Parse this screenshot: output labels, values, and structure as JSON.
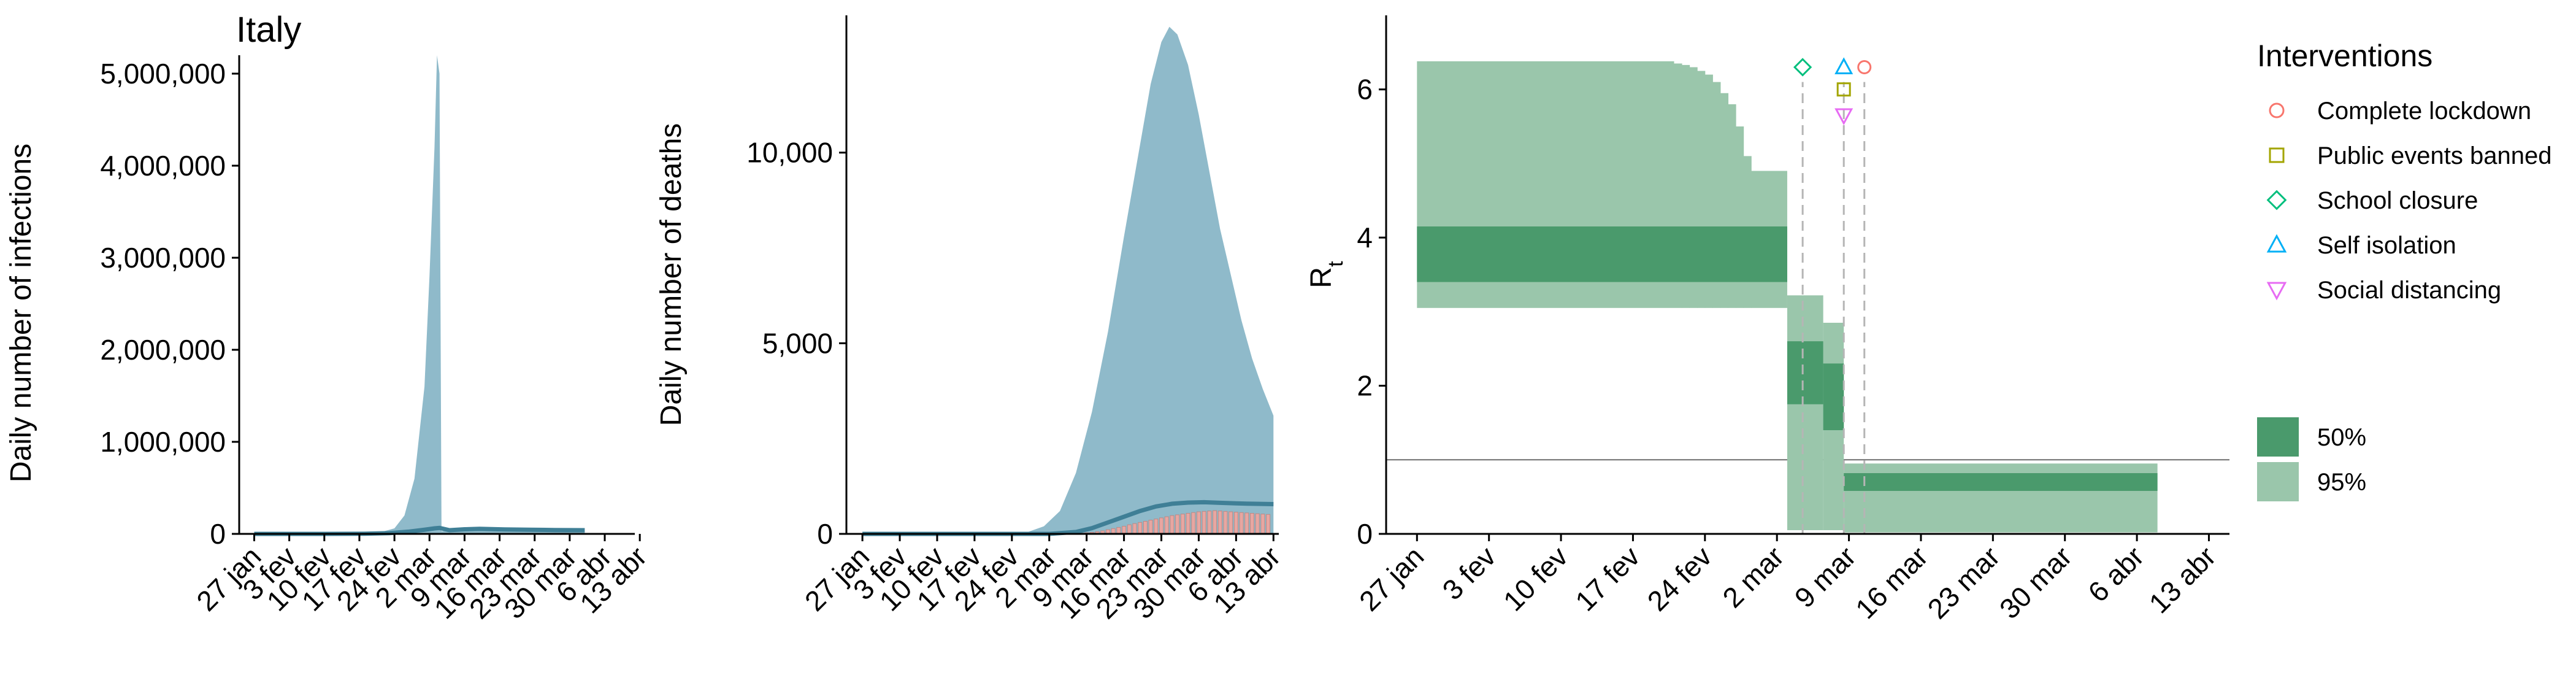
{
  "figure_title": "Italy",
  "colors": {
    "band_blue": "#8fbaca",
    "line_blue": "#3f7f96",
    "bar_red": "#e8a6a1",
    "rt_50": "#4a9a6c",
    "rt_95": "#9ac6ab",
    "lockdown": "#f8766d",
    "public_events": "#a3a500",
    "school": "#00bf7d",
    "self_isolation": "#00b0f6",
    "social_distancing": "#e76bf3"
  },
  "legend": {
    "interventions_title": "Interventions",
    "interventions": [
      {
        "label": "Complete lockdown",
        "shape": "circle",
        "color_key": "lockdown"
      },
      {
        "label": "Public events banned",
        "shape": "square",
        "color_key": "public_events"
      },
      {
        "label": "School closure",
        "shape": "diamond",
        "color_key": "school"
      },
      {
        "label": "Self isolation",
        "shape": "triangle-up",
        "color_key": "self_isolation"
      },
      {
        "label": "Social distancing",
        "shape": "triangle-down",
        "color_key": "social_distancing"
      }
    ],
    "ci": [
      {
        "label": "50%",
        "color_key": "rt_50"
      },
      {
        "label": "95%",
        "color_key": "rt_95"
      }
    ]
  },
  "chart_data": [
    {
      "id": "infections",
      "type": "area",
      "title": "Italy",
      "ylabel": "Daily number of infections",
      "xlim_day": [
        -3,
        76
      ],
      "ylim": [
        0,
        5200000
      ],
      "yticks": [
        0,
        1000000,
        2000000,
        3000000,
        4000000,
        5000000
      ],
      "ytick_labels": [
        "0",
        "1,000,000",
        "2,000,000",
        "3,000,000",
        "4,000,000",
        "5,000,000"
      ],
      "xticks_day": [
        0,
        7,
        14,
        21,
        28,
        35,
        42,
        49,
        56,
        63,
        70,
        77
      ],
      "xtick_labels": [
        "27 jan",
        "3 fev",
        "10 fev",
        "17 fev",
        "24 fev",
        "2 mar",
        "9 mar",
        "16 mar",
        "23 mar",
        "30 mar",
        "6 abr",
        "13 abr"
      ],
      "upper_band": [
        [
          0,
          0
        ],
        [
          14,
          0
        ],
        [
          21,
          2000
        ],
        [
          25,
          15000
        ],
        [
          28,
          60000
        ],
        [
          30,
          200000
        ],
        [
          32,
          600000
        ],
        [
          34,
          1600000
        ],
        [
          35,
          2800000
        ],
        [
          36,
          4200000
        ],
        [
          36.5,
          5200000
        ],
        [
          37,
          5000000
        ],
        [
          37.4,
          30000
        ],
        [
          40,
          40000
        ],
        [
          45,
          50000
        ],
        [
          50,
          45000
        ],
        [
          55,
          40000
        ],
        [
          60,
          38000
        ],
        [
          66,
          35000
        ],
        [
          66,
          0
        ]
      ],
      "median_line": [
        [
          0,
          0
        ],
        [
          14,
          0
        ],
        [
          22,
          2000
        ],
        [
          27,
          8000
        ],
        [
          31,
          25000
        ],
        [
          34,
          45000
        ],
        [
          36,
          60000
        ],
        [
          37,
          65000
        ],
        [
          39,
          40000
        ],
        [
          42,
          50000
        ],
        [
          45,
          55000
        ],
        [
          50,
          48000
        ],
        [
          55,
          45000
        ],
        [
          60,
          42000
        ],
        [
          66,
          40000
        ]
      ]
    },
    {
      "id": "deaths",
      "type": "area",
      "ylabel": "Daily number of deaths",
      "xlim_day": [
        -3,
        78
      ],
      "ylim": [
        0,
        13600
      ],
      "yticks": [
        0,
        5000,
        10000
      ],
      "ytick_labels": [
        "0",
        "5,000",
        "10,000"
      ],
      "xticks_day": [
        0,
        7,
        14,
        21,
        28,
        35,
        42,
        49,
        56,
        63,
        70,
        77
      ],
      "xtick_labels": [
        "27 jan",
        "3 fev",
        "10 fev",
        "17 fev",
        "24 fev",
        "2 mar",
        "9 mar",
        "16 mar",
        "23 mar",
        "30 mar",
        "6 abr",
        "13 abr"
      ],
      "upper_band": [
        [
          0,
          0
        ],
        [
          28,
          0
        ],
        [
          31,
          50
        ],
        [
          34,
          200
        ],
        [
          37,
          600
        ],
        [
          40,
          1600
        ],
        [
          43,
          3200
        ],
        [
          46,
          5300
        ],
        [
          49,
          7800
        ],
        [
          52,
          10200
        ],
        [
          54,
          11800
        ],
        [
          56,
          12900
        ],
        [
          57.5,
          13300
        ],
        [
          59,
          13100
        ],
        [
          61,
          12300
        ],
        [
          63,
          11000
        ],
        [
          65,
          9500
        ],
        [
          67,
          8000
        ],
        [
          69,
          6800
        ],
        [
          71,
          5600
        ],
        [
          73,
          4600
        ],
        [
          75,
          3800
        ],
        [
          77,
          3100
        ],
        [
          77,
          0
        ]
      ],
      "median_line": [
        [
          0,
          0
        ],
        [
          35,
          0
        ],
        [
          40,
          50
        ],
        [
          43,
          150
        ],
        [
          46,
          300
        ],
        [
          49,
          450
        ],
        [
          52,
          600
        ],
        [
          55,
          720
        ],
        [
          58,
          790
        ],
        [
          61,
          820
        ],
        [
          64,
          830
        ],
        [
          67,
          815
        ],
        [
          70,
          800
        ],
        [
          73,
          790
        ],
        [
          77,
          780
        ]
      ],
      "reported_deaths": [
        [
          40,
          10
        ],
        [
          41,
          20
        ],
        [
          42,
          30
        ],
        [
          43,
          40
        ],
        [
          44,
          60
        ],
        [
          45,
          80
        ],
        [
          46,
          110
        ],
        [
          47,
          140
        ],
        [
          48,
          170
        ],
        [
          49,
          200
        ],
        [
          50,
          240
        ],
        [
          51,
          270
        ],
        [
          52,
          300
        ],
        [
          53,
          330
        ],
        [
          54,
          360
        ],
        [
          55,
          390
        ],
        [
          56,
          420
        ],
        [
          57,
          450
        ],
        [
          58,
          480
        ],
        [
          59,
          500
        ],
        [
          60,
          520
        ],
        [
          61,
          540
        ],
        [
          62,
          560
        ],
        [
          63,
          580
        ],
        [
          64,
          590
        ],
        [
          65,
          600
        ],
        [
          66,
          610
        ],
        [
          67,
          600
        ],
        [
          68,
          590
        ],
        [
          69,
          580
        ],
        [
          70,
          570
        ],
        [
          71,
          560
        ],
        [
          72,
          550
        ],
        [
          73,
          540
        ],
        [
          74,
          530
        ],
        [
          75,
          520
        ],
        [
          76,
          510
        ]
      ]
    },
    {
      "id": "rt",
      "type": "area",
      "ylabel": "R",
      "ylabel_subscript": "t",
      "xlim_day": [
        -3,
        79
      ],
      "ylim": [
        0,
        7
      ],
      "yticks": [
        0,
        2,
        4,
        6
      ],
      "ytick_labels": [
        "0",
        "2",
        "4",
        "6"
      ],
      "xticks_day": [
        0,
        7,
        14,
        21,
        28,
        35,
        42,
        49,
        56,
        63,
        70,
        77
      ],
      "xtick_labels": [
        "27 jan",
        "3 fev",
        "10 fev",
        "17 fev",
        "24 fev",
        "2 mar",
        "9 mar",
        "16 mar",
        "23 mar",
        "30 mar",
        "6 abr",
        "13 abr"
      ],
      "reference_line": 1,
      "series": [
        {
          "name": "95%",
          "segments": [
            {
              "start_day": 0,
              "end_day": 25,
              "lo": 3.05,
              "hi": 6.38
            },
            {
              "start_day": 25,
              "end_day": 32.5,
              "lo": 3.05,
              "hi_steps": [
                6.35,
                6.33,
                6.3,
                6.25,
                6.2,
                6.1,
                5.95,
                5.8,
                5.5,
                5.1
              ]
            },
            {
              "start_day": 36,
              "end_day": 39.5,
              "lo": 0.05,
              "hi": 3.22
            },
            {
              "start_day": 39.5,
              "end_day": 41.5,
              "lo": 0.05,
              "hi": 2.85
            },
            {
              "start_day": 41.5,
              "end_day": 72,
              "lo": 0.02,
              "hi": 0.95
            }
          ]
        },
        {
          "name": "50%",
          "segments": [
            {
              "start_day": 0,
              "end_day": 36,
              "lo": 3.4,
              "hi": 4.15
            },
            {
              "start_day": 36,
              "end_day": 39.5,
              "lo": 1.75,
              "hi": 2.6
            },
            {
              "start_day": 39.5,
              "end_day": 41.5,
              "lo": 1.4,
              "hi": 2.3
            },
            {
              "start_day": 41.5,
              "end_day": 72,
              "lo": 0.58,
              "hi": 0.82
            }
          ]
        }
      ],
      "interventions": [
        {
          "label": "School closure",
          "day": 37.5,
          "marker_y": 6.3,
          "shape": "diamond",
          "color_key": "school"
        },
        {
          "label": "Self isolation",
          "day": 41.5,
          "marker_y": 6.3,
          "shape": "triangle-up",
          "color_key": "self_isolation"
        },
        {
          "label": "Public events banned",
          "day": 41.5,
          "marker_y": 6.0,
          "shape": "square",
          "color_key": "public_events"
        },
        {
          "label": "Social distancing",
          "day": 41.5,
          "marker_y": 5.65,
          "shape": "triangle-down",
          "color_key": "social_distancing"
        },
        {
          "label": "Complete lockdown",
          "day": 43.5,
          "marker_y": 6.3,
          "shape": "circle",
          "color_key": "lockdown"
        }
      ]
    }
  ]
}
